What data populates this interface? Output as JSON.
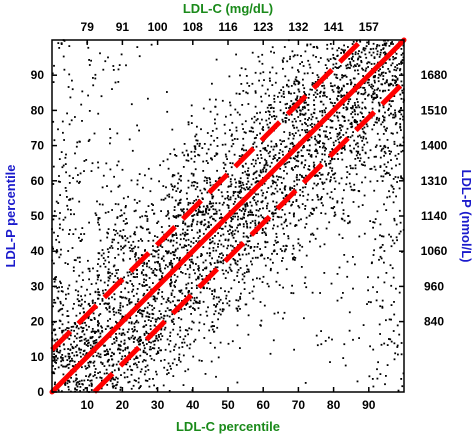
{
  "chart_data": {
    "type": "scatter",
    "xlabel": "LDL-C percentile",
    "ylabel": "LDL-P percentile",
    "x2label": "LDL-C (mg/dL)",
    "y2label": "LDL-P (nmol/L)",
    "xlim": [
      0,
      100
    ],
    "ylim": [
      0,
      100
    ],
    "x_ticks": [
      "10",
      "20",
      "30",
      "40",
      "50",
      "60",
      "70",
      "80",
      "90"
    ],
    "y_ticks": [
      "0",
      "10",
      "20",
      "30",
      "40",
      "50",
      "60",
      "70",
      "80",
      "90"
    ],
    "x2_ticks": [
      {
        "pct": 10,
        "label": "79"
      },
      {
        "pct": 20,
        "label": "91"
      },
      {
        "pct": 30,
        "label": "100"
      },
      {
        "pct": 40,
        "label": "108"
      },
      {
        "pct": 50,
        "label": "116"
      },
      {
        "pct": 60,
        "label": "123"
      },
      {
        "pct": 70,
        "label": "132"
      },
      {
        "pct": 80,
        "label": "141"
      },
      {
        "pct": 90,
        "label": "157"
      }
    ],
    "y2_ticks": [
      {
        "pct": 20,
        "label": "840"
      },
      {
        "pct": 30,
        "label": "960"
      },
      {
        "pct": 40,
        "label": "1060"
      },
      {
        "pct": 50,
        "label": "1140"
      },
      {
        "pct": 60,
        "label": "1310"
      },
      {
        "pct": 70,
        "label": "1400"
      },
      {
        "pct": 80,
        "label": "1510"
      },
      {
        "pct": 90,
        "label": "1680"
      }
    ],
    "identity_line": {
      "from": [
        0,
        0
      ],
      "to": [
        100,
        100
      ],
      "color": "#ff0000",
      "style": "solid"
    },
    "band_lines": [
      {
        "from": [
          0,
          12
        ],
        "to": [
          88,
          100
        ],
        "color": "#ff0000",
        "style": "dashed"
      },
      {
        "from": [
          12,
          0
        ],
        "to": [
          100,
          88
        ],
        "color": "#ff0000",
        "style": "dashed"
      }
    ],
    "point_color": "#000000",
    "density": "dense scatter concentrated along the diagonal",
    "colors": {
      "x2_axis_title": "#1a8a1a",
      "xlabel": "#1a8a1a",
      "ylabel": "#1a1acc",
      "y2_axis_title": "#1a1acc",
      "reference_lines": "#ff0000"
    }
  }
}
